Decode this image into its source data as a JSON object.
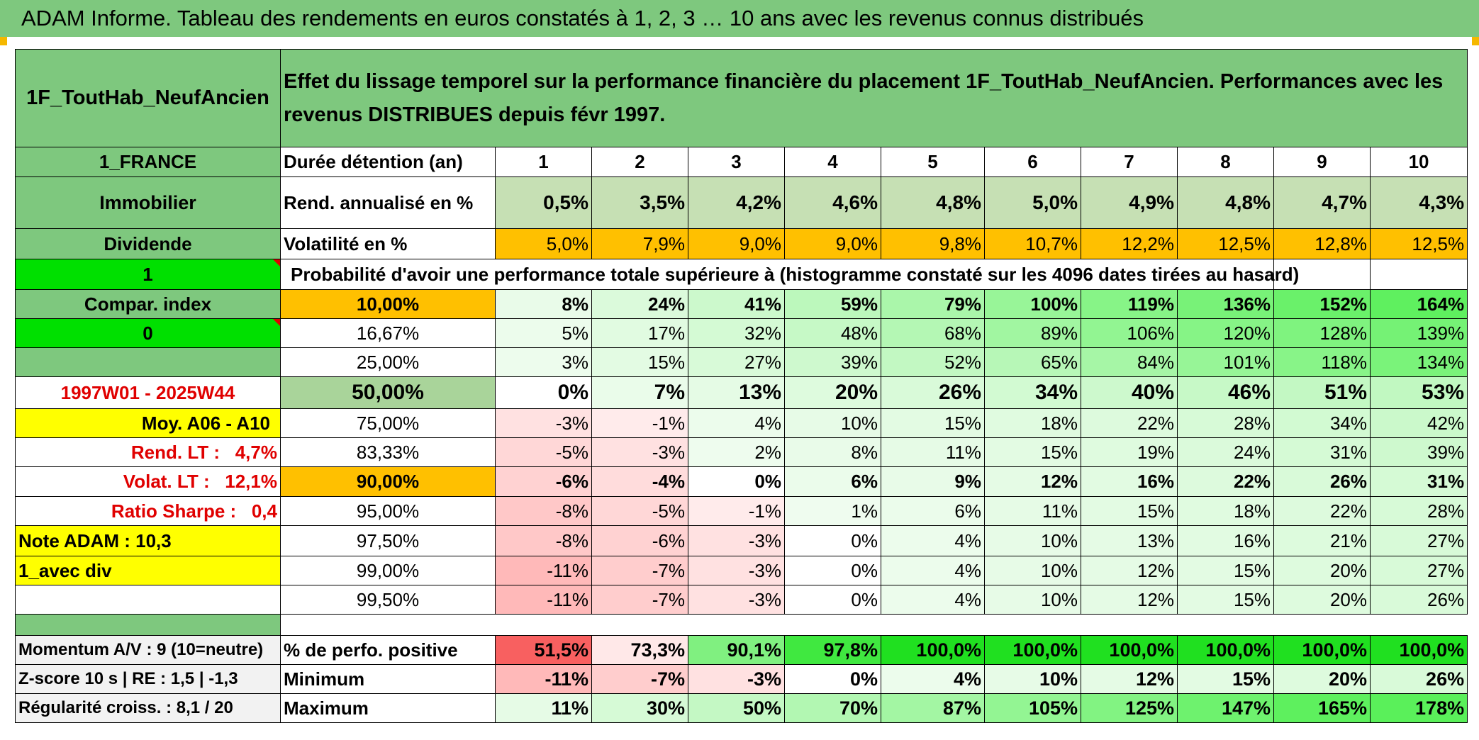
{
  "title": "ADAM Informe. Tableau des rendements en euros constatés à 1, 2, 3 … 10 ans avec les revenus connus distribués",
  "header": {
    "fund": "1F_ToutHab_NeufAncien",
    "description": "Effet du lissage temporel sur la performance financière du placement 1F_ToutHab_NeufAncien. Performances avec les revenus DISTRIBUES depuis févr 1997."
  },
  "left": {
    "country": "1_FRANCE",
    "category": "Immobilier",
    "dividend": "Dividende",
    "one": "1",
    "compar": "Compar. index",
    "zero": "0",
    "period": "1997W01 - 2025W44",
    "moy": "Moy. A06 - A10",
    "rend_lt": "Rend. LT :   4,7%",
    "volat_lt": "Volat. LT :   12,1%",
    "sharpe": "Ratio Sharpe :   0,4",
    "note": "Note ADAM : 10,3",
    "avec_div": "1_avec div",
    "momentum": "Momentum A/V : 9 (10=neutre)",
    "zscore": "Z-score 10 s | RE : 1,5 | -1,3",
    "regularite": "Régularité croiss. : 8,1 / 20"
  },
  "labels": {
    "duree": "Durée détention (an)",
    "rend": "Rend. annualisé en %",
    "volat": "Volatilité en %",
    "proba": "Probabilité d'avoir une performance totale supérieure à (histogramme constaté sur les 4096 dates tirées au hasard)",
    "pct_positive": "% de perfo. positive",
    "minimum": "Minimum",
    "maximum": "Maximum"
  },
  "years": [
    "1",
    "2",
    "3",
    "4",
    "5",
    "6",
    "7",
    "8",
    "9",
    "10"
  ],
  "rend": [
    "0,5%",
    "3,5%",
    "4,2%",
    "4,6%",
    "4,8%",
    "5,0%",
    "4,9%",
    "4,8%",
    "4,7%",
    "4,3%"
  ],
  "volat": [
    "5,0%",
    "7,9%",
    "9,0%",
    "9,0%",
    "9,8%",
    "10,7%",
    "12,2%",
    "12,5%",
    "12,8%",
    "12,5%"
  ],
  "prob_rows": [
    {
      "pct": "10,00%",
      "vals": [
        "8%",
        "24%",
        "41%",
        "59%",
        "79%",
        "100%",
        "119%",
        "136%",
        "152%",
        "164%"
      ]
    },
    {
      "pct": "16,67%",
      "vals": [
        "5%",
        "17%",
        "32%",
        "48%",
        "68%",
        "89%",
        "106%",
        "120%",
        "128%",
        "139%"
      ]
    },
    {
      "pct": "25,00%",
      "vals": [
        "3%",
        "15%",
        "27%",
        "39%",
        "52%",
        "65%",
        "84%",
        "101%",
        "118%",
        "134%"
      ]
    },
    {
      "pct": "50,00%",
      "vals": [
        "0%",
        "7%",
        "13%",
        "20%",
        "26%",
        "34%",
        "40%",
        "46%",
        "51%",
        "53%"
      ]
    },
    {
      "pct": "75,00%",
      "vals": [
        "-3%",
        "-1%",
        "4%",
        "10%",
        "15%",
        "18%",
        "22%",
        "28%",
        "34%",
        "42%"
      ]
    },
    {
      "pct": "83,33%",
      "vals": [
        "-5%",
        "-3%",
        "2%",
        "8%",
        "11%",
        "15%",
        "19%",
        "24%",
        "31%",
        "39%"
      ]
    },
    {
      "pct": "90,00%",
      "vals": [
        "-6%",
        "-4%",
        "0%",
        "6%",
        "9%",
        "12%",
        "16%",
        "22%",
        "26%",
        "31%"
      ]
    },
    {
      "pct": "95,00%",
      "vals": [
        "-8%",
        "-5%",
        "-1%",
        "1%",
        "6%",
        "11%",
        "15%",
        "18%",
        "22%",
        "28%"
      ]
    },
    {
      "pct": "97,50%",
      "vals": [
        "-8%",
        "-6%",
        "-3%",
        "0%",
        "4%",
        "10%",
        "13%",
        "16%",
        "21%",
        "27%"
      ]
    },
    {
      "pct": "99,00%",
      "vals": [
        "-11%",
        "-7%",
        "-3%",
        "0%",
        "4%",
        "10%",
        "12%",
        "15%",
        "20%",
        "27%"
      ]
    },
    {
      "pct": "99,50%",
      "vals": [
        "-11%",
        "-7%",
        "-3%",
        "0%",
        "4%",
        "10%",
        "12%",
        "15%",
        "20%",
        "26%"
      ]
    }
  ],
  "pct_positive": [
    "51,5%",
    "73,3%",
    "90,1%",
    "97,8%",
    "100,0%",
    "100,0%",
    "100,0%",
    "100,0%",
    "100,0%",
    "100,0%"
  ],
  "minimum": [
    "-11%",
    "-7%",
    "-3%",
    "0%",
    "4%",
    "10%",
    "12%",
    "15%",
    "20%",
    "26%"
  ],
  "maximum": [
    "11%",
    "30%",
    "50%",
    "70%",
    "87%",
    "105%",
    "125%",
    "147%",
    "165%",
    "178%"
  ],
  "colors": {
    "header_green": "#7ec87e",
    "bright_green": "#00e000",
    "yellow": "#ffff00",
    "orange": "#ffc000",
    "red_text": "#e00000",
    "rend_bg": "#c6e0b4",
    "neg_bg": "#f8cbcb",
    "pos_bg": "#c8f5c8"
  }
}
